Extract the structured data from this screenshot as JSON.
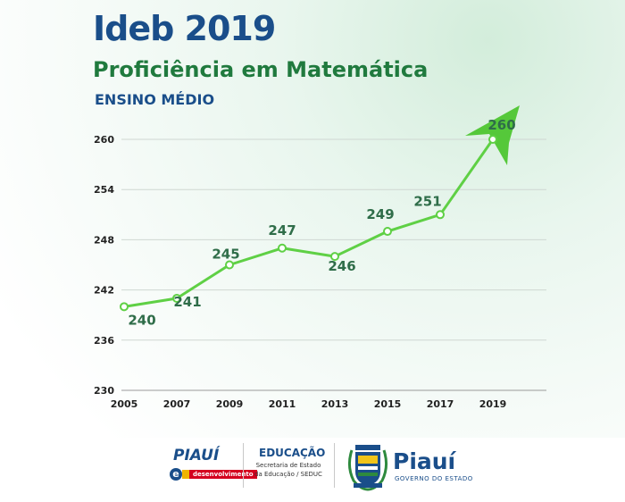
{
  "header": {
    "title": "Ideb 2019",
    "subtitle": "Proficiência em Matemática",
    "level": "ENSINO MÉDIO"
  },
  "chart_data": {
    "type": "line",
    "x": [
      "2005",
      "2007",
      "2009",
      "2011",
      "2013",
      "2015",
      "2017",
      "2019"
    ],
    "values": [
      240,
      241,
      245,
      247,
      246,
      249,
      251,
      260
    ],
    "yticks": [
      230,
      236,
      242,
      248,
      254,
      260
    ],
    "ylim": [
      230,
      260
    ],
    "grid": true,
    "line_color": "#5fd045",
    "arrow_color": "#55c83a"
  },
  "footer": {
    "piaui_dev_word": "PIAUÍ",
    "piaui_dev_e": "e",
    "piaui_dev_banner": "desenvolvimento",
    "education_title": "EDUCAÇÃO",
    "education_sub1": "Secretaria de Estado",
    "education_sub2": "da Educação / SEDUC",
    "gov_name": "Piauí",
    "gov_sub": "GOVERNO DO ESTADO",
    "brand_blue": "#1a4e8a",
    "brand_green": "#207a3e"
  }
}
